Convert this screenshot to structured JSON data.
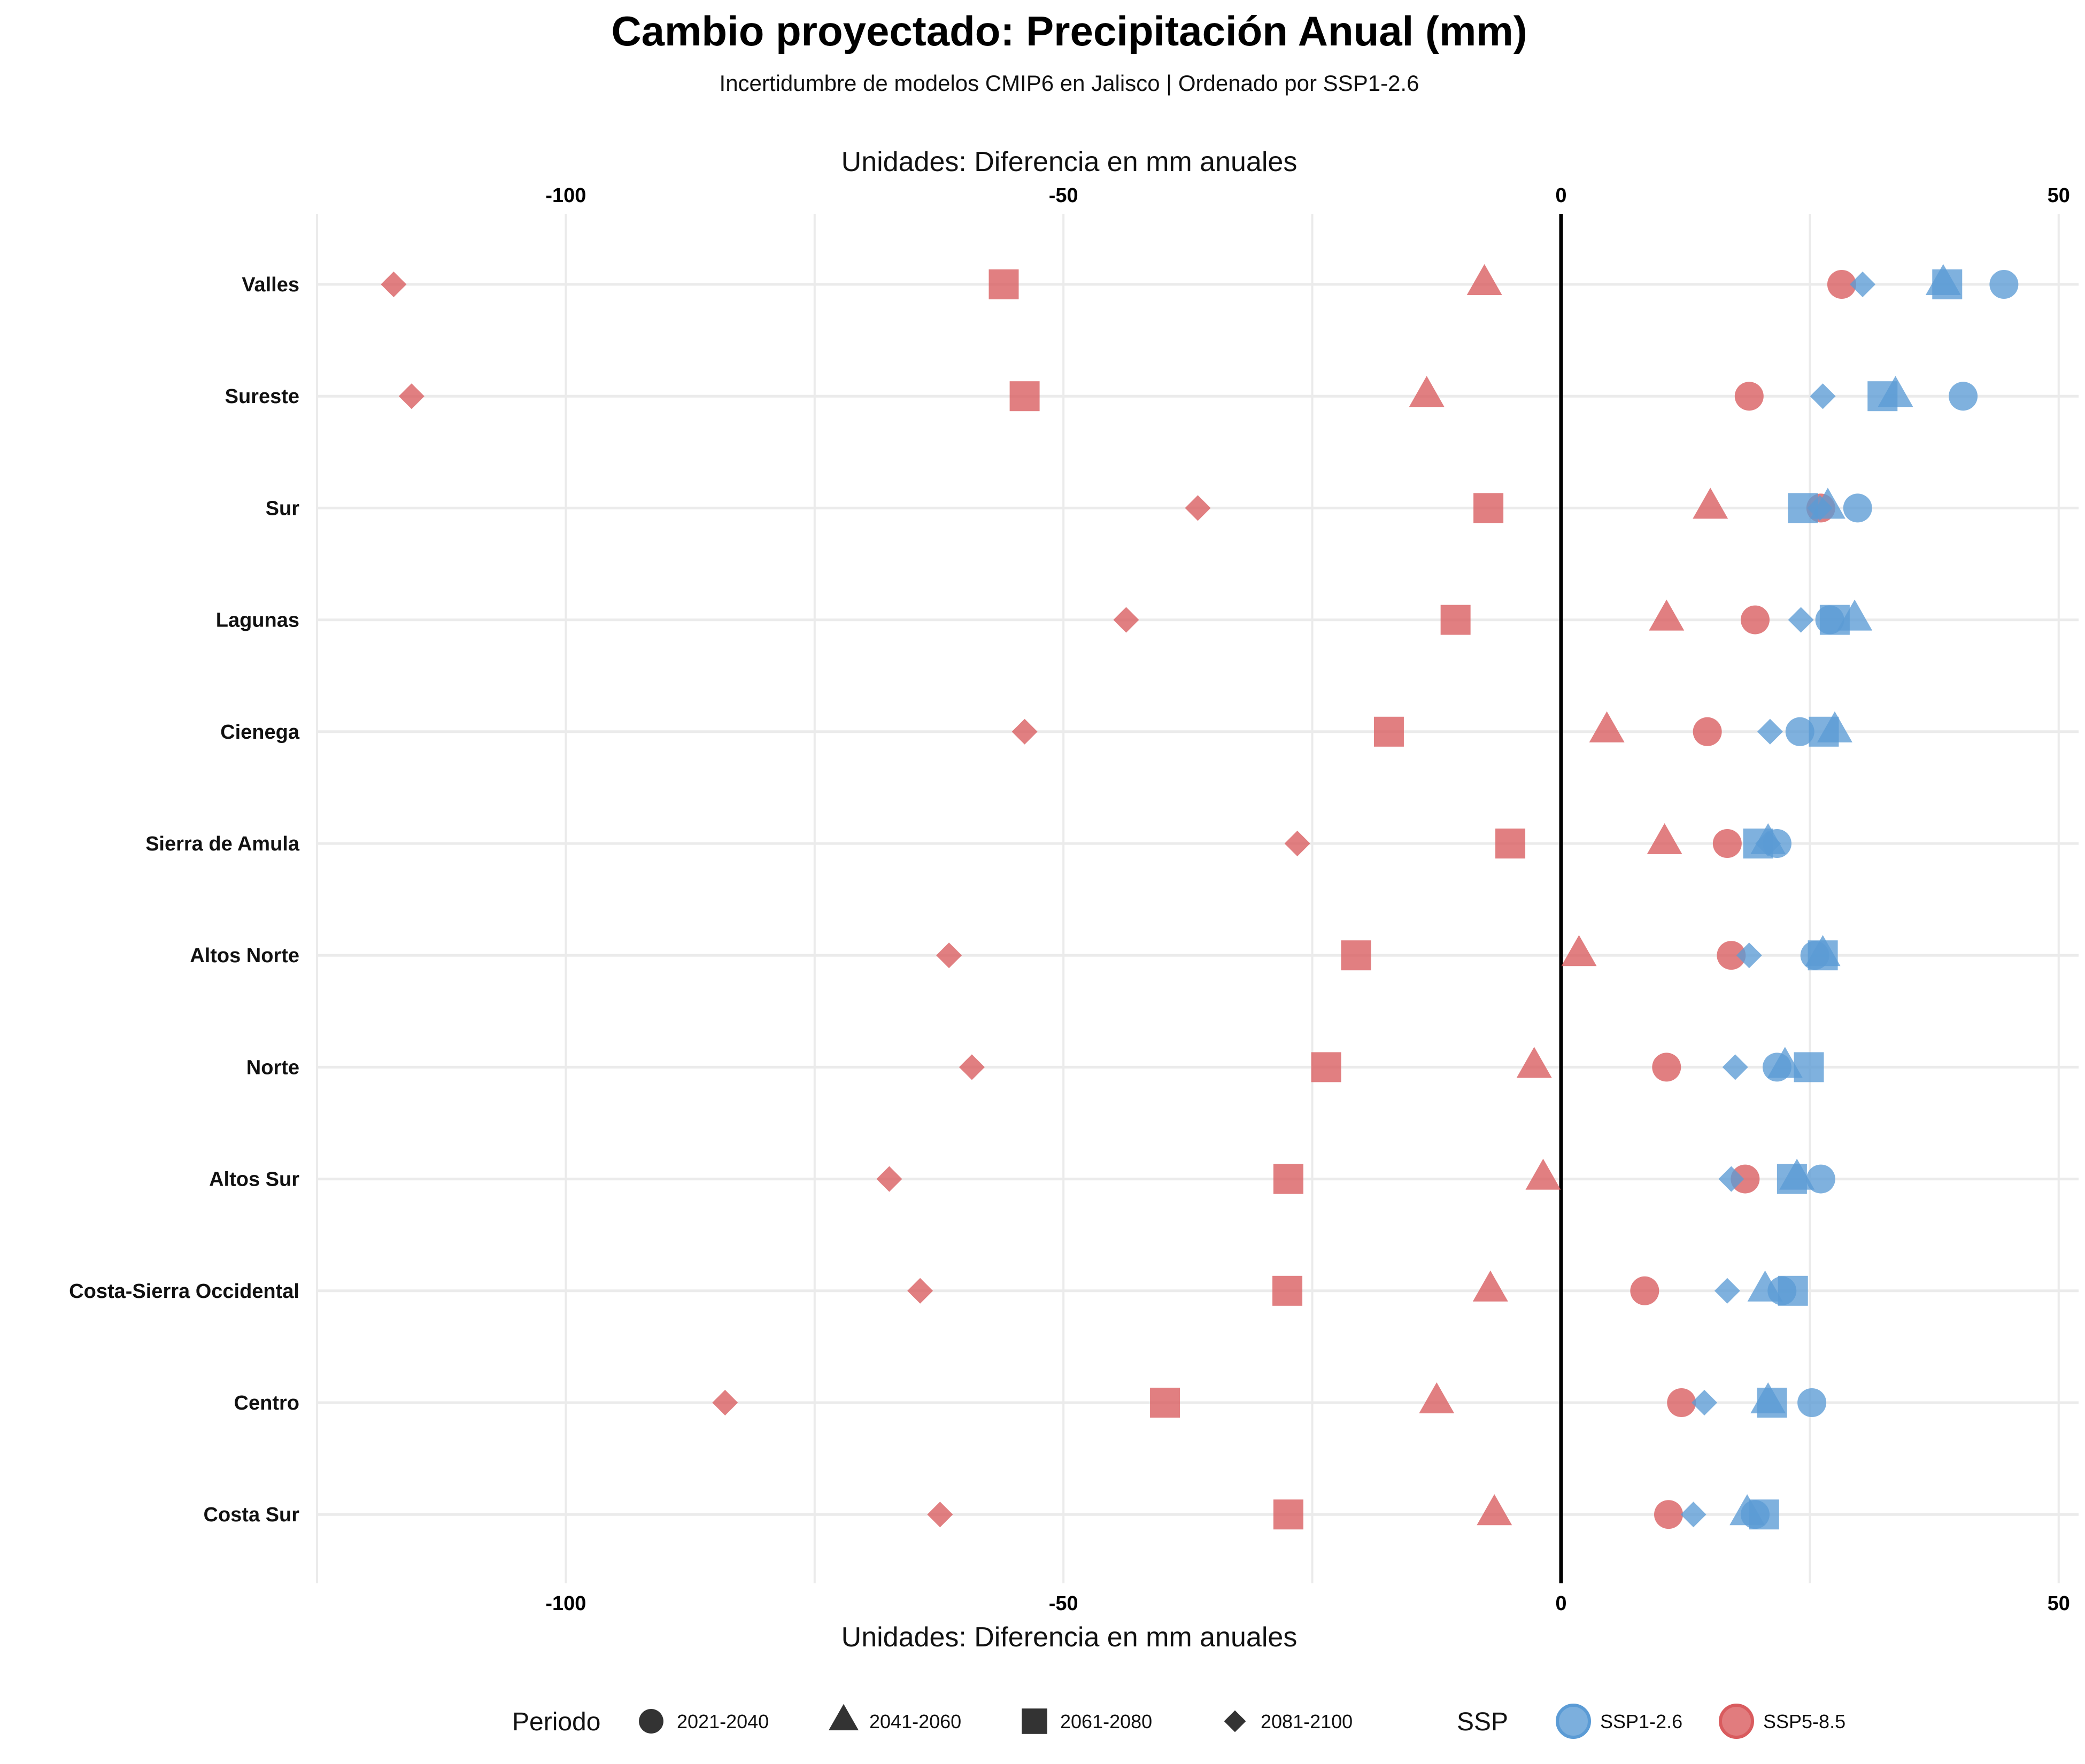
{
  "chart_data": {
    "type": "scatter",
    "title": "Cambio proyectado: Precipitación Anual (mm)",
    "subtitle": "Incertidumbre de modelos CMIP6 en Jalisco | Ordenado por SSP1-2.6",
    "xlabel": "Unidades: Diferencia en mm anuales",
    "xlim": [
      -125,
      52
    ],
    "xticks": [
      -100,
      -50,
      0,
      50
    ],
    "grid": true,
    "legend_placement": "bottom",
    "shape_legend": {
      "title": "Periodo",
      "entries": [
        "2021-2040",
        "2041-2060",
        "2061-2080",
        "2081-2100"
      ],
      "shapes": [
        "circle",
        "triangle",
        "square",
        "diamond"
      ]
    },
    "color_legend": {
      "title": "SSP",
      "entries": [
        "SSP1-2.6",
        "SSP5-8.5"
      ]
    },
    "colors": {
      "SSP1-2.6": "#5B9BD5",
      "SSP5-8.5": "#D95B5E"
    },
    "categories": [
      "Valles",
      "Sureste",
      "Sur",
      "Lagunas",
      "Cienega",
      "Sierra de Amula",
      "Altos Norte",
      "Norte",
      "Altos Sur",
      "Costa-Sierra Occidental",
      "Centro",
      "Costa Sur"
    ],
    "series": [
      {
        "name": "SSP1-2.6",
        "periods": {
          "2021-2040": [
            44.5,
            40.4,
            29.8,
            27.0,
            24.0,
            21.7,
            25.5,
            21.7,
            26.1,
            22.2,
            25.2,
            19.5
          ],
          "2041-2060": [
            38.4,
            33.6,
            26.8,
            29.5,
            27.5,
            20.8,
            26.3,
            22.5,
            23.7,
            20.5,
            20.8,
            18.7
          ],
          "2061-2080": [
            38.8,
            32.3,
            24.3,
            27.5,
            26.4,
            19.8,
            26.3,
            24.9,
            23.2,
            23.3,
            21.2,
            20.4
          ],
          "2081-2100": [
            30.3,
            26.3,
            26.0,
            24.1,
            21.0,
            20.8,
            18.9,
            17.5,
            17.1,
            16.7,
            14.4,
            13.3
          ]
        }
      },
      {
        "name": "SSP5-8.5",
        "periods": {
          "2021-2040": [
            28.2,
            18.9,
            26.1,
            19.5,
            14.7,
            16.7,
            17.1,
            10.6,
            18.5,
            8.4,
            12.1,
            10.8
          ],
          "2041-2060": [
            -7.7,
            -13.5,
            15.0,
            10.6,
            4.6,
            10.4,
            1.8,
            -2.7,
            -1.8,
            -7.1,
            -12.5,
            -6.7
          ],
          "2061-2080": [
            -56.0,
            -53.9,
            -7.3,
            -10.6,
            -17.3,
            -5.1,
            -20.6,
            -23.6,
            -27.4,
            -27.5,
            -39.8,
            -27.4
          ],
          "2081-2100": [
            -117.3,
            -115.5,
            -36.5,
            -43.7,
            -53.9,
            -26.5,
            -61.5,
            -59.2,
            -67.5,
            -64.4,
            -84.0,
            -62.4
          ]
        }
      }
    ]
  }
}
